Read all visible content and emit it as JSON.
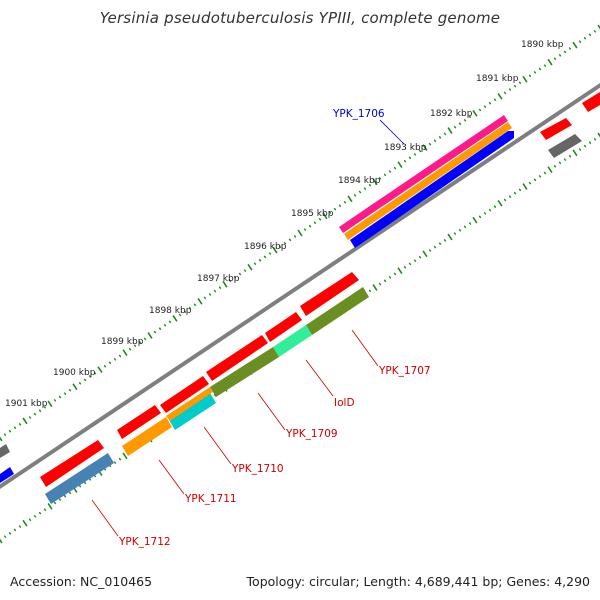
{
  "title": "Yersinia pseudotuberculosis YPIII, complete genome",
  "footer": {
    "accession_label": "Accession:",
    "accession": "NC_010465",
    "topology_label": "Topology:",
    "topology": "circular",
    "length_label": "Length:",
    "length": "4,689,441 bp",
    "genes_label": "Genes:",
    "genes": "4,290"
  },
  "scale_labels": [
    "1890 kbp",
    "1891 kbp",
    "1892 kbp",
    "1893 kbp",
    "1894 kbp",
    "1895 kbp",
    "1896 kbp",
    "1897 kbp",
    "1898 kbp",
    "1899 kbp",
    "1900 kbp",
    "1901 kbp"
  ],
  "gene_labels": [
    {
      "id": "ypk1706",
      "text": "YPK_1706",
      "color": "#0000cc"
    },
    {
      "id": "ypk1707",
      "text": "YPK_1707",
      "color": "#cc0000"
    },
    {
      "id": "iold",
      "text": "IolD",
      "color": "#cc0000"
    },
    {
      "id": "ypk1709",
      "text": "YPK_1709",
      "color": "#cc0000"
    },
    {
      "id": "ypk1710",
      "text": "YPK_1710",
      "color": "#cc0000"
    },
    {
      "id": "ypk1711",
      "text": "YPK_1711",
      "color": "#cc0000"
    },
    {
      "id": "ypk1712",
      "text": "YPK_1712",
      "color": "#cc0000"
    }
  ],
  "colors": {
    "backbone": "#808080",
    "tick": "#1a8a1a",
    "red": "#ff0000",
    "blue": "#0000ff",
    "magenta": "#ff1493",
    "orange": "#ff9900",
    "olive": "#6b8e23",
    "green_bright": "#33dd88",
    "cyan": "#00cccc",
    "steelblue": "#4682b4",
    "gray": "#666666"
  }
}
